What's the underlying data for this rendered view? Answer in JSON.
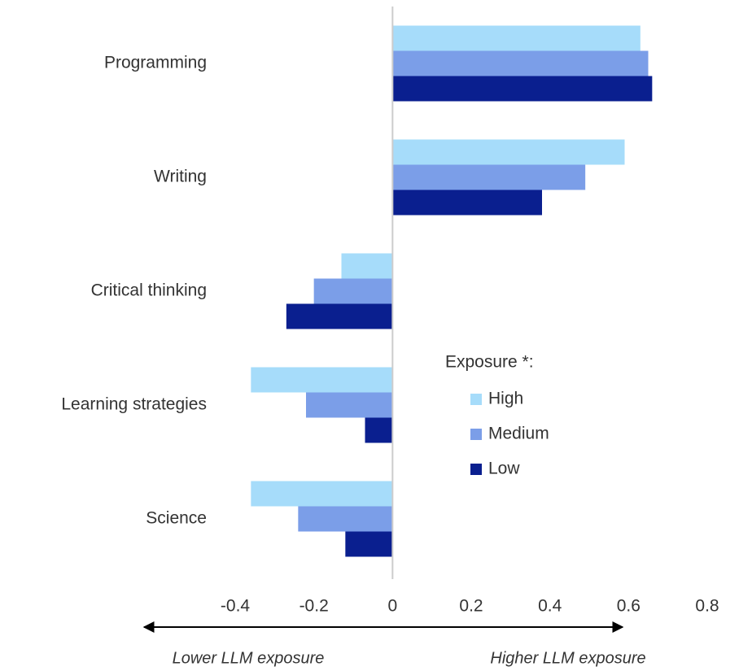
{
  "chart_data": {
    "type": "bar",
    "orientation": "horizontal",
    "categories": [
      "Programming",
      "Writing",
      "Critical thinking",
      "Learning strategies",
      "Science"
    ],
    "series": [
      {
        "name": "High",
        "color": "#a6dcfa",
        "values": [
          0.63,
          0.59,
          -0.13,
          -0.36,
          -0.36
        ]
      },
      {
        "name": "Medium",
        "color": "#7b9ee8",
        "values": [
          0.65,
          0.49,
          -0.2,
          -0.22,
          -0.24
        ]
      },
      {
        "name": "Low",
        "color": "#0a1f8f",
        "values": [
          0.66,
          0.38,
          -0.27,
          -0.07,
          -0.12
        ]
      }
    ],
    "xlim": [
      -0.4,
      0.8
    ],
    "xticks": [
      -0.4,
      -0.2,
      0,
      0.2,
      0.4,
      0.6,
      0.8
    ],
    "legend_title": "Exposure *:",
    "annotations": [
      "Lower LLM exposure",
      "Higher LLM exposure"
    ]
  }
}
